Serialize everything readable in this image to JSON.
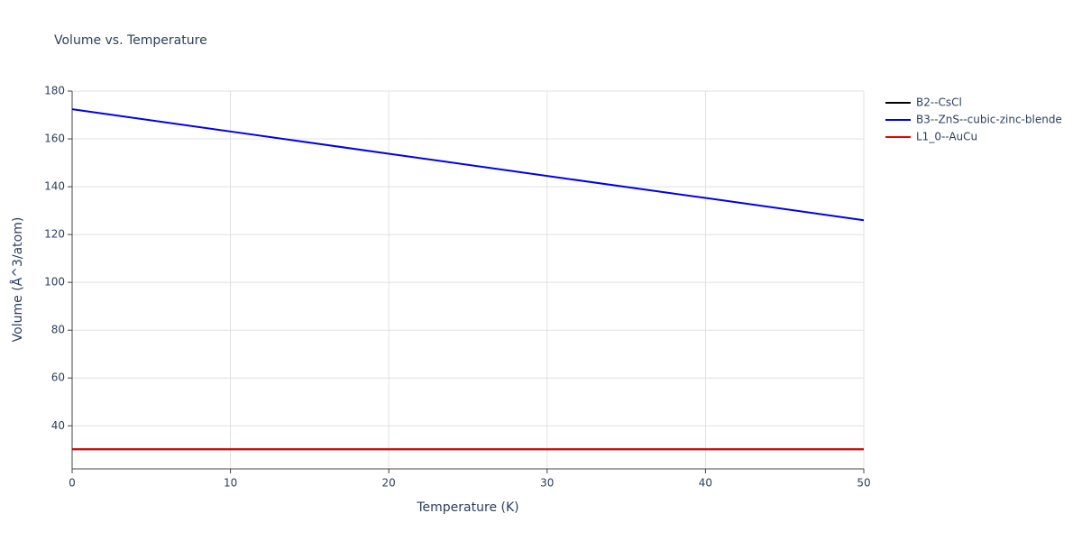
{
  "chart_data": {
    "type": "line",
    "title": "Volume vs. Temperature",
    "x_label": "Temperature (K)",
    "y_label": "Volume (Å^3/atom)",
    "x": [
      0,
      10,
      20,
      30,
      40,
      50
    ],
    "series": [
      {
        "name": "B2--CsCl",
        "color": "#000000",
        "values": [
          30.2,
          30.2,
          30.2,
          30.2,
          30.2,
          30.2
        ]
      },
      {
        "name": "B3--ZnS--cubic-zinc-blende",
        "color": "#0000ee",
        "values": [
          172.4,
          163.1,
          153.8,
          144.5,
          135.3,
          126.0
        ]
      },
      {
        "name": "L1_0--AuCu",
        "color": "#ee0000",
        "values": [
          30.2,
          30.2,
          30.2,
          30.2,
          30.2,
          30.2
        ]
      }
    ],
    "xlim": [
      0,
      50
    ],
    "xticks": [
      0,
      10,
      20,
      30,
      40,
      50
    ],
    "ylim": [
      22,
      180
    ],
    "yticks": [
      40,
      60,
      80,
      100,
      120,
      140,
      160,
      180
    ],
    "grid": true,
    "legend": "right"
  }
}
